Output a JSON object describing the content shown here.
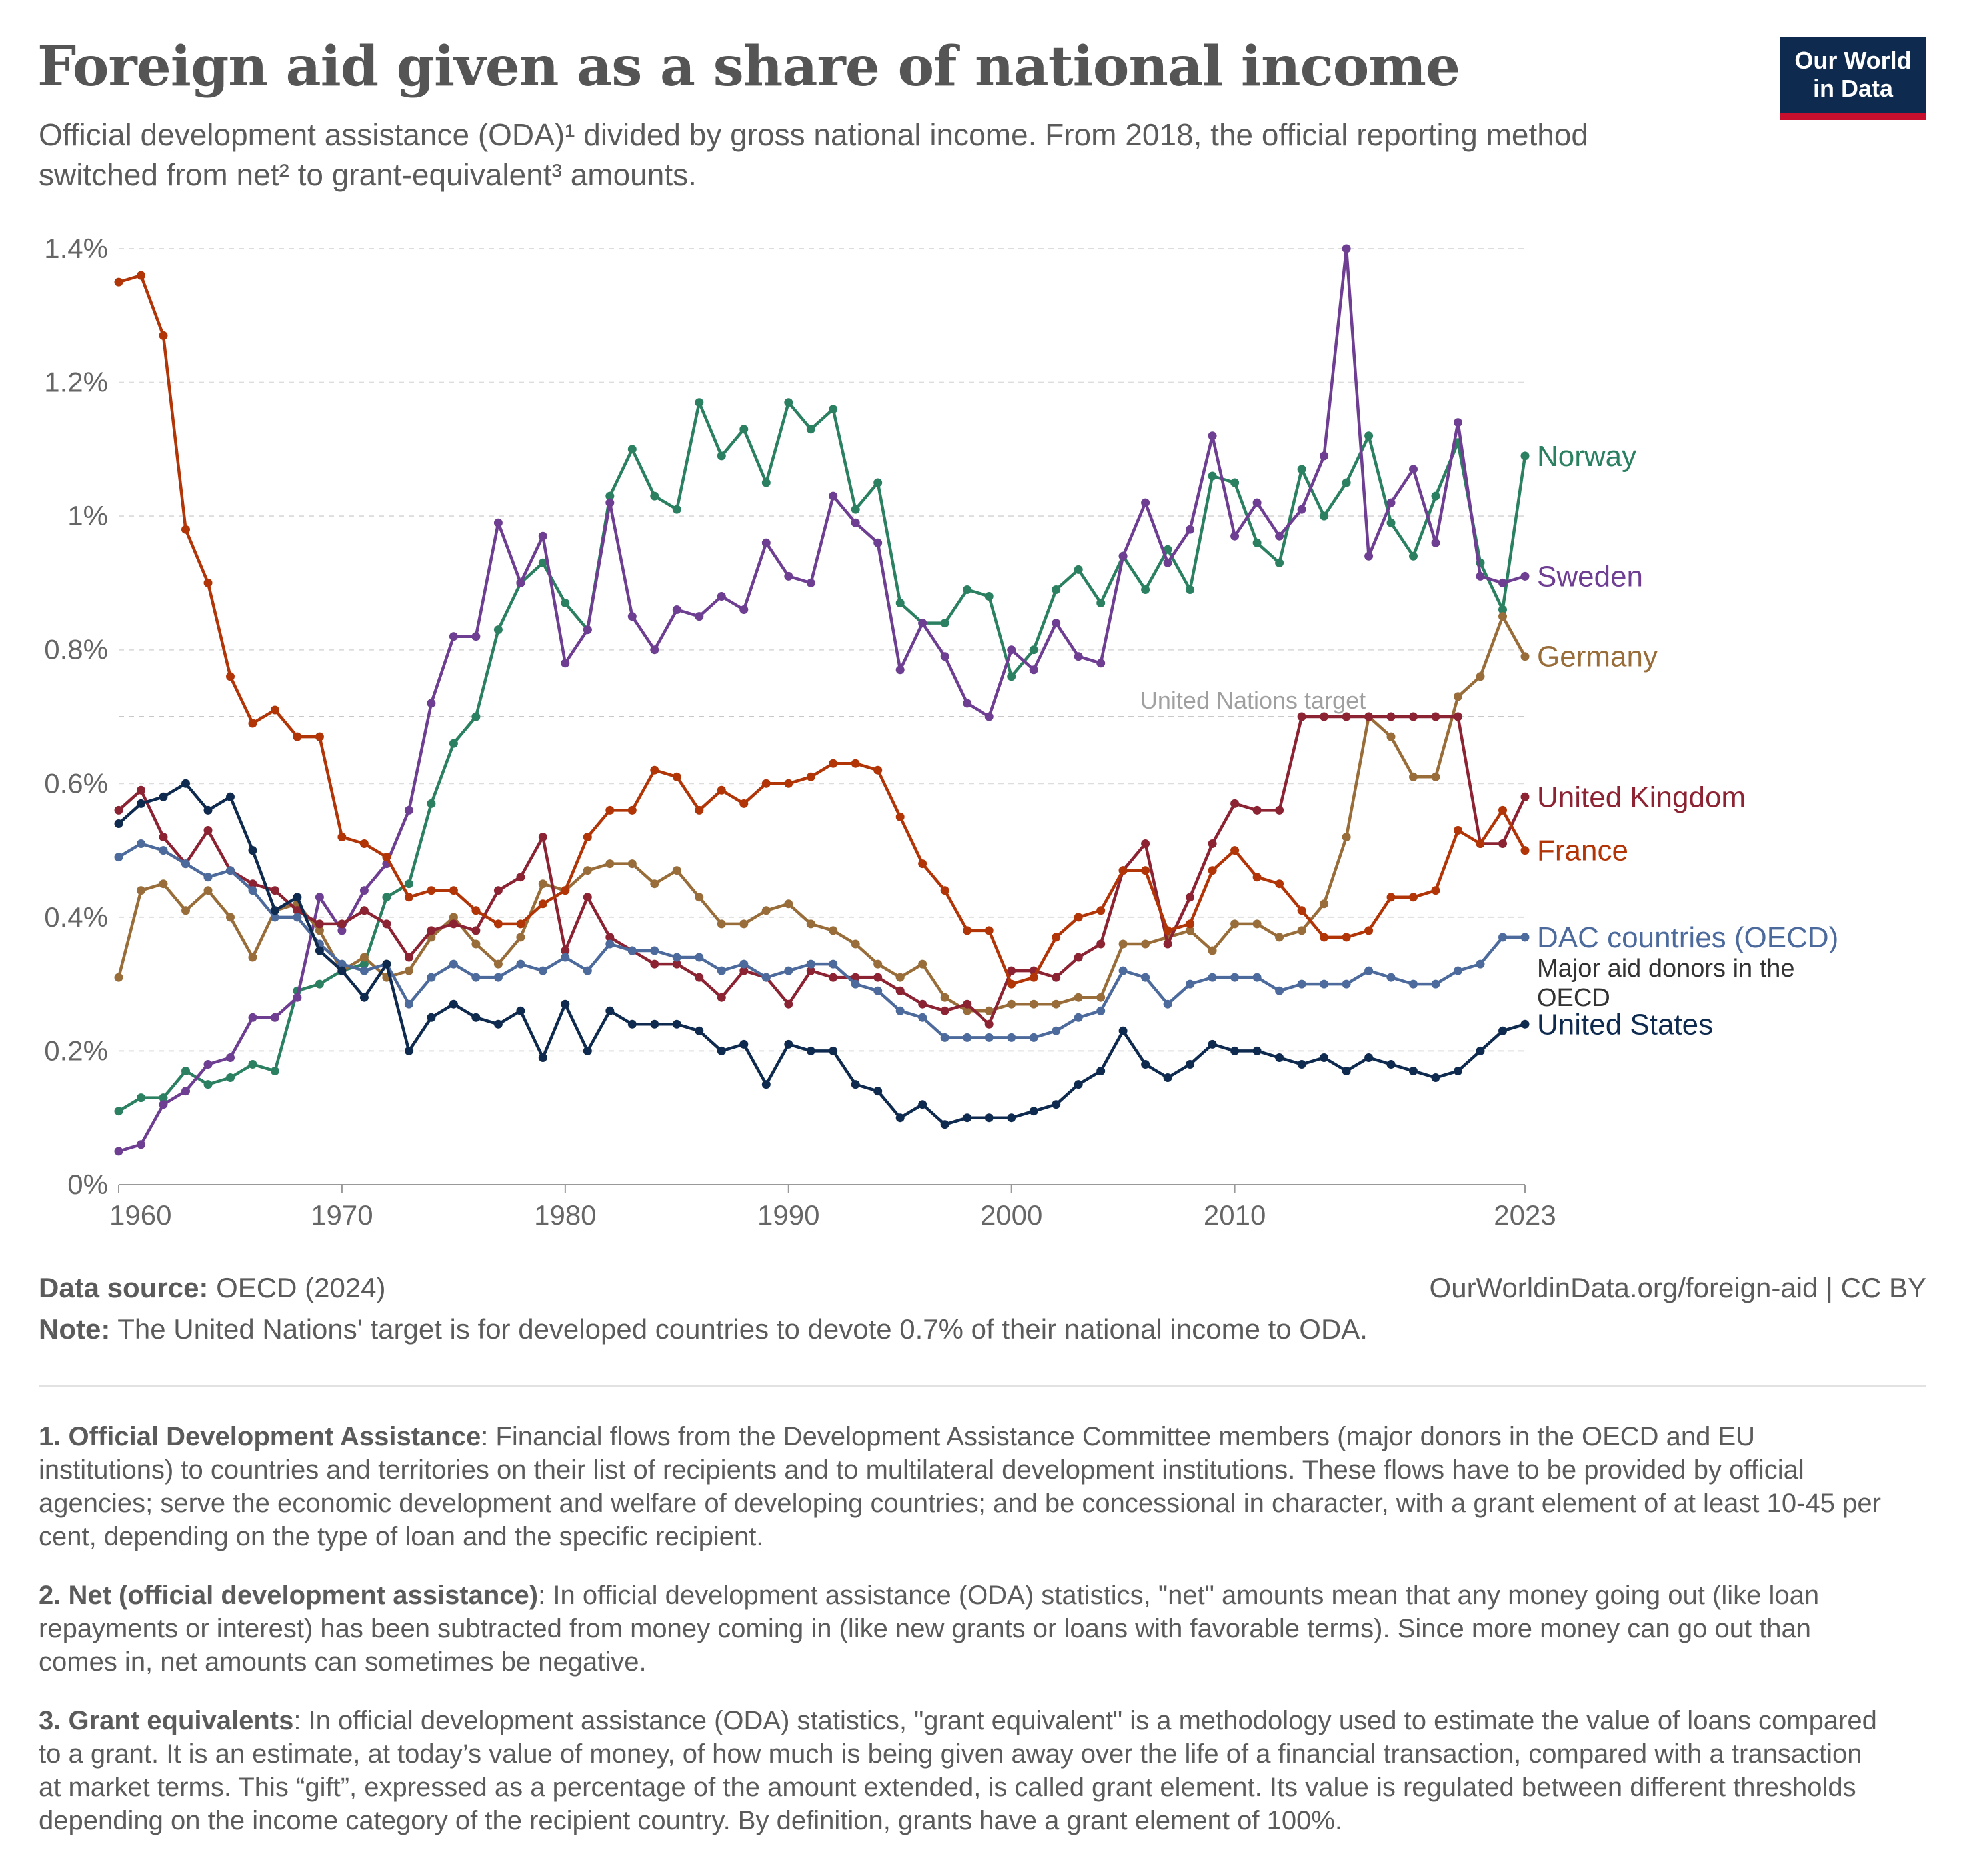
{
  "header": {
    "title": "Foreign aid given as a share of national income",
    "subtitle": "Official development assistance (ODA)¹ divided by gross national income. From 2018, the official reporting method switched from net² to grant-equivalent³ amounts."
  },
  "logo": {
    "line1": "Our World",
    "line2": "in Data",
    "bg_color": "#0f2a4f",
    "accent_color": "#c8102e"
  },
  "chart_data": {
    "type": "line",
    "title": "Foreign aid given as a share of national income",
    "xlabel": "",
    "ylabel": "",
    "xlim": [
      1960,
      2023
    ],
    "ylim": [
      0,
      1.4
    ],
    "y_ticks": [
      {
        "value": 0,
        "label": "0%"
      },
      {
        "value": 0.2,
        "label": "0.2%"
      },
      {
        "value": 0.4,
        "label": "0.4%"
      },
      {
        "value": 0.6,
        "label": "0.6%"
      },
      {
        "value": 0.8,
        "label": "0.8%"
      },
      {
        "value": 1.0,
        "label": "1%"
      },
      {
        "value": 1.2,
        "label": "1.2%"
      },
      {
        "value": 1.4,
        "label": "1.4%"
      }
    ],
    "x_ticks": [
      {
        "value": 1960,
        "label": "1960"
      },
      {
        "value": 1970,
        "label": "1970"
      },
      {
        "value": 1980,
        "label": "1980"
      },
      {
        "value": 1990,
        "label": "1990"
      },
      {
        "value": 2000,
        "label": "2000"
      },
      {
        "value": 2010,
        "label": "2010"
      },
      {
        "value": 2023,
        "label": "2023"
      }
    ],
    "grid": "horizontal dashed",
    "legend": "labels at right end of lines",
    "reference_line": {
      "value": 0.7,
      "label": "United Nations target"
    },
    "x": [
      1960,
      1961,
      1962,
      1963,
      1964,
      1965,
      1966,
      1967,
      1968,
      1969,
      1970,
      1971,
      1972,
      1973,
      1974,
      1975,
      1976,
      1977,
      1978,
      1979,
      1980,
      1981,
      1982,
      1983,
      1984,
      1985,
      1986,
      1987,
      1988,
      1989,
      1990,
      1991,
      1992,
      1993,
      1994,
      1995,
      1996,
      1997,
      1998,
      1999,
      2000,
      2001,
      2002,
      2003,
      2004,
      2005,
      2006,
      2007,
      2008,
      2009,
      2010,
      2011,
      2012,
      2013,
      2014,
      2015,
      2016,
      2017,
      2018,
      2019,
      2020,
      2021,
      2022,
      2023
    ],
    "series": [
      {
        "name": "Norway",
        "color": "#2a8060",
        "values": [
          0.11,
          0.13,
          0.13,
          0.17,
          0.15,
          0.16,
          0.18,
          0.17,
          0.29,
          0.3,
          0.32,
          0.33,
          0.43,
          0.45,
          0.57,
          0.66,
          0.7,
          0.83,
          0.9,
          0.93,
          0.87,
          0.83,
          1.03,
          1.1,
          1.03,
          1.01,
          1.17,
          1.09,
          1.13,
          1.05,
          1.17,
          1.13,
          1.16,
          1.01,
          1.05,
          0.87,
          0.84,
          0.84,
          0.89,
          0.88,
          0.76,
          0.8,
          0.89,
          0.92,
          0.87,
          0.94,
          0.89,
          0.95,
          0.89,
          1.06,
          1.05,
          0.96,
          0.93,
          1.07,
          1.0,
          1.05,
          1.12,
          0.99,
          0.94,
          1.03,
          1.11,
          0.93,
          0.86,
          1.09
        ]
      },
      {
        "name": "Sweden",
        "color": "#6d3e91",
        "values": [
          0.05,
          0.06,
          0.12,
          0.14,
          0.18,
          0.19,
          0.25,
          0.25,
          0.28,
          0.43,
          0.38,
          0.44,
          0.48,
          0.56,
          0.72,
          0.82,
          0.82,
          0.99,
          0.9,
          0.97,
          0.78,
          0.83,
          1.02,
          0.85,
          0.8,
          0.86,
          0.85,
          0.88,
          0.86,
          0.96,
          0.91,
          0.9,
          1.03,
          0.99,
          0.96,
          0.77,
          0.84,
          0.79,
          0.72,
          0.7,
          0.8,
          0.77,
          0.84,
          0.79,
          0.78,
          0.94,
          1.02,
          0.93,
          0.98,
          1.12,
          0.97,
          1.02,
          0.97,
          1.01,
          1.09,
          1.4,
          0.94,
          1.02,
          1.07,
          0.96,
          1.14,
          0.91,
          0.9,
          0.91
        ]
      },
      {
        "name": "Germany",
        "color": "#996d39",
        "values": [
          0.31,
          0.44,
          0.45,
          0.41,
          0.44,
          0.4,
          0.34,
          0.41,
          0.42,
          0.38,
          0.32,
          0.34,
          0.31,
          0.32,
          0.37,
          0.4,
          0.36,
          0.33,
          0.37,
          0.45,
          0.44,
          0.47,
          0.48,
          0.48,
          0.45,
          0.47,
          0.43,
          0.39,
          0.39,
          0.41,
          0.42,
          0.39,
          0.38,
          0.36,
          0.33,
          0.31,
          0.33,
          0.28,
          0.26,
          0.26,
          0.27,
          0.27,
          0.27,
          0.28,
          0.28,
          0.36,
          0.36,
          0.37,
          0.38,
          0.35,
          0.39,
          0.39,
          0.37,
          0.38,
          0.42,
          0.52,
          0.7,
          0.67,
          0.61,
          0.61,
          0.73,
          0.76,
          0.85,
          0.79
        ]
      },
      {
        "name": "United Kingdom",
        "color": "#8c2333",
        "values": [
          0.56,
          0.59,
          0.52,
          0.48,
          0.53,
          0.47,
          0.45,
          0.44,
          0.41,
          0.39,
          0.39,
          0.41,
          0.39,
          0.34,
          0.38,
          0.39,
          0.38,
          0.44,
          0.46,
          0.52,
          0.35,
          0.43,
          0.37,
          0.35,
          0.33,
          0.33,
          0.31,
          0.28,
          0.32,
          0.31,
          0.27,
          0.32,
          0.31,
          0.31,
          0.31,
          0.29,
          0.27,
          0.26,
          0.27,
          0.24,
          0.32,
          0.32,
          0.31,
          0.34,
          0.36,
          0.47,
          0.51,
          0.36,
          0.43,
          0.51,
          0.57,
          0.56,
          0.56,
          0.7,
          0.7,
          0.7,
          0.7,
          0.7,
          0.7,
          0.7,
          0.7,
          0.51,
          0.51,
          0.58
        ]
      },
      {
        "name": "France",
        "color": "#b13507",
        "values": [
          1.35,
          1.36,
          1.27,
          0.98,
          0.9,
          0.76,
          0.69,
          0.71,
          0.67,
          0.67,
          0.52,
          0.51,
          0.49,
          0.43,
          0.44,
          0.44,
          0.41,
          0.39,
          0.39,
          0.42,
          0.44,
          0.52,
          0.56,
          0.56,
          0.62,
          0.61,
          0.56,
          0.59,
          0.57,
          0.6,
          0.6,
          0.61,
          0.63,
          0.63,
          0.62,
          0.55,
          0.48,
          0.44,
          0.38,
          0.38,
          0.3,
          0.31,
          0.37,
          0.4,
          0.41,
          0.47,
          0.47,
          0.38,
          0.39,
          0.47,
          0.5,
          0.46,
          0.45,
          0.41,
          0.37,
          0.37,
          0.38,
          0.43,
          0.43,
          0.44,
          0.53,
          0.51,
          0.56,
          0.5
        ]
      },
      {
        "name": "DAC countries (OECD)",
        "color": "#4c6a9c",
        "values": [
          0.49,
          0.51,
          0.5,
          0.48,
          0.46,
          0.47,
          0.44,
          0.4,
          0.4,
          0.36,
          0.33,
          0.32,
          0.33,
          0.27,
          0.31,
          0.33,
          0.31,
          0.31,
          0.33,
          0.32,
          0.34,
          0.32,
          0.36,
          0.35,
          0.35,
          0.34,
          0.34,
          0.32,
          0.33,
          0.31,
          0.32,
          0.33,
          0.33,
          0.3,
          0.29,
          0.26,
          0.25,
          0.22,
          0.22,
          0.22,
          0.22,
          0.22,
          0.23,
          0.25,
          0.26,
          0.32,
          0.31,
          0.27,
          0.3,
          0.31,
          0.31,
          0.31,
          0.29,
          0.3,
          0.3,
          0.3,
          0.32,
          0.31,
          0.3,
          0.3,
          0.32,
          0.33,
          0.37,
          0.37
        ]
      },
      {
        "name": "United States",
        "color": "#0f2a4f",
        "values": [
          0.54,
          0.57,
          0.58,
          0.6,
          0.56,
          0.58,
          0.5,
          0.41,
          0.43,
          0.35,
          0.32,
          0.28,
          0.33,
          0.2,
          0.25,
          0.27,
          0.25,
          0.24,
          0.26,
          0.19,
          0.27,
          0.2,
          0.26,
          0.24,
          0.24,
          0.24,
          0.23,
          0.2,
          0.21,
          0.15,
          0.21,
          0.2,
          0.2,
          0.15,
          0.14,
          0.1,
          0.12,
          0.09,
          0.1,
          0.1,
          0.1,
          0.11,
          0.12,
          0.15,
          0.17,
          0.23,
          0.18,
          0.16,
          0.18,
          0.21,
          0.2,
          0.2,
          0.19,
          0.18,
          0.19,
          0.17,
          0.19,
          0.18,
          0.17,
          0.16,
          0.17,
          0.2,
          0.23,
          0.24
        ]
      }
    ],
    "labels": [
      {
        "series": "Norway",
        "lines": [
          "Norway"
        ]
      },
      {
        "series": "Sweden",
        "lines": [
          "Sweden"
        ]
      },
      {
        "series": "Germany",
        "lines": [
          "Germany"
        ]
      },
      {
        "series": "United Kingdom",
        "lines": [
          "United Kingdom"
        ]
      },
      {
        "series": "France",
        "lines": [
          "France"
        ]
      },
      {
        "series": "DAC countries (OECD)",
        "lines": [
          "DAC countries (OECD)"
        ],
        "sub_lines": [
          "Major aid donors in the",
          "OECD"
        ]
      },
      {
        "series": "United States",
        "lines": [
          "United States"
        ]
      }
    ]
  },
  "footer": {
    "source_label": "Data source:",
    "source_value": "OECD (2024)",
    "url": "OurWorldinData.org/foreign-aid | CC BY",
    "note_label": "Note:",
    "note_value": "The United Nations' target is for developed countries to devote 0.7% of their national income to ODA."
  },
  "footnotes": [
    {
      "label": "1. Official Development Assistance",
      "text": ": Financial flows from the Development Assistance Committee members (major donors in the OECD and EU institutions) to countries and territories on their list of recipients and to multilateral development institutions. These flows have to be provided by official agencies; serve the economic development and welfare of developing countries; and be concessional in character, with a grant element of at least 10-45 per cent, depending on the type of loan and the specific recipient."
    },
    {
      "label": "2. Net (official development assistance)",
      "text": ": In official development assistance (ODA) statistics, \"net\" amounts mean that any money going out (like loan repayments or interest) has been subtracted from money coming in (like new grants or loans with favorable terms). Since more money can go out than comes in, net amounts can sometimes be negative."
    },
    {
      "label": "3. Grant equivalents",
      "text": ": In official development assistance (ODA) statistics, \"grant equivalent\" is a methodology used to estimate the value of loans compared to a grant. It is an estimate, at today’s value of money, of how much is being given away over the life of a financial transaction, compared with a transaction at market terms. This “gift”, expressed as a percentage of the amount extended, is called grant element. Its value is regulated between different thresholds depending on the income category of the recipient country. By definition, grants have a grant element of 100%."
    }
  ]
}
